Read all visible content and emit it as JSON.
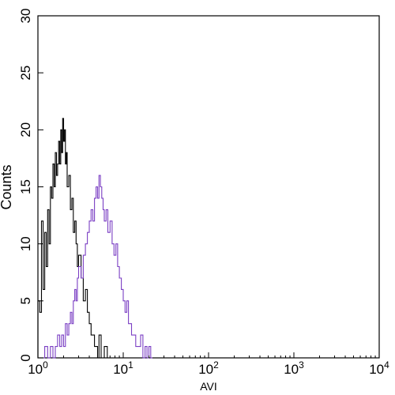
{
  "chart_data": {
    "type": "line",
    "title": "",
    "xlabel": "AVI",
    "ylabel": "Counts",
    "x_scale": "log",
    "xlim": [
      1,
      10000
    ],
    "ylim": [
      0,
      30
    ],
    "x_ticks": [
      {
        "value": 1,
        "base": "10",
        "exp": "0"
      },
      {
        "value": 10,
        "base": "10",
        "exp": "1"
      },
      {
        "value": 100,
        "base": "10",
        "exp": "2"
      },
      {
        "value": 1000,
        "base": "10",
        "exp": "3"
      },
      {
        "value": 10000,
        "base": "10",
        "exp": "4"
      }
    ],
    "y_ticks": [
      0,
      5,
      10,
      15,
      20,
      25,
      30
    ],
    "grid": false,
    "legend": "none",
    "series": [
      {
        "color": "#000000",
        "x": [
          1.0,
          1.05,
          1.1,
          1.15,
          1.2,
          1.25,
          1.3,
          1.35,
          1.4,
          1.45,
          1.5,
          1.55,
          1.6,
          1.65,
          1.7,
          1.75,
          1.8,
          1.85,
          1.9,
          1.95,
          2.0,
          2.05,
          2.1,
          2.15,
          2.2,
          2.3,
          2.4,
          2.5,
          2.6,
          2.7,
          2.8,
          2.9,
          3.0,
          3.2,
          3.4,
          3.6,
          3.8,
          4.0,
          4.2,
          4.4,
          4.6,
          4.8,
          5.0,
          5.2,
          5.5,
          6.0,
          6.5,
          7.0
        ],
        "y": [
          5,
          4,
          12,
          6,
          11,
          8,
          13,
          10,
          15,
          14,
          17,
          15,
          18,
          16,
          17,
          19,
          17,
          20,
          18,
          21,
          19,
          20,
          17,
          18,
          15,
          16,
          13,
          14,
          11,
          12,
          10,
          8,
          9,
          7,
          5,
          6,
          4,
          3,
          2,
          2,
          1,
          1,
          0,
          2,
          0,
          1,
          0,
          0
        ]
      },
      {
        "color": "#7b3fc4",
        "x": [
          1.0,
          1.1,
          1.2,
          1.3,
          1.4,
          1.5,
          1.6,
          1.7,
          1.8,
          1.9,
          2.0,
          2.1,
          2.2,
          2.3,
          2.4,
          2.5,
          2.6,
          2.7,
          2.8,
          2.9,
          3.0,
          3.2,
          3.4,
          3.6,
          3.8,
          4.0,
          4.2,
          4.4,
          4.6,
          4.8,
          5.0,
          5.2,
          5.4,
          5.6,
          5.8,
          6.0,
          6.3,
          6.6,
          7.0,
          7.4,
          7.8,
          8.2,
          8.6,
          9.0,
          9.5,
          10.0,
          10.5,
          11.0,
          11.5,
          12.0,
          12.5,
          13.0,
          14.0,
          15.0,
          16.0,
          17.0,
          18.0,
          19.0,
          20.0,
          21.0,
          22.0
        ],
        "y": [
          0,
          0,
          1,
          0,
          1,
          0,
          1,
          2,
          1,
          2,
          1,
          3,
          2,
          3,
          4,
          3,
          5,
          6,
          5,
          7,
          8,
          7,
          9,
          10,
          11,
          12,
          13,
          12,
          14,
          15,
          14,
          16,
          15,
          14,
          13,
          12,
          13,
          11,
          12,
          10,
          9,
          10,
          8,
          7,
          6,
          5,
          4,
          5,
          3,
          3,
          2,
          2,
          1,
          1,
          2,
          0,
          1,
          0,
          1,
          0,
          0
        ]
      }
    ]
  }
}
